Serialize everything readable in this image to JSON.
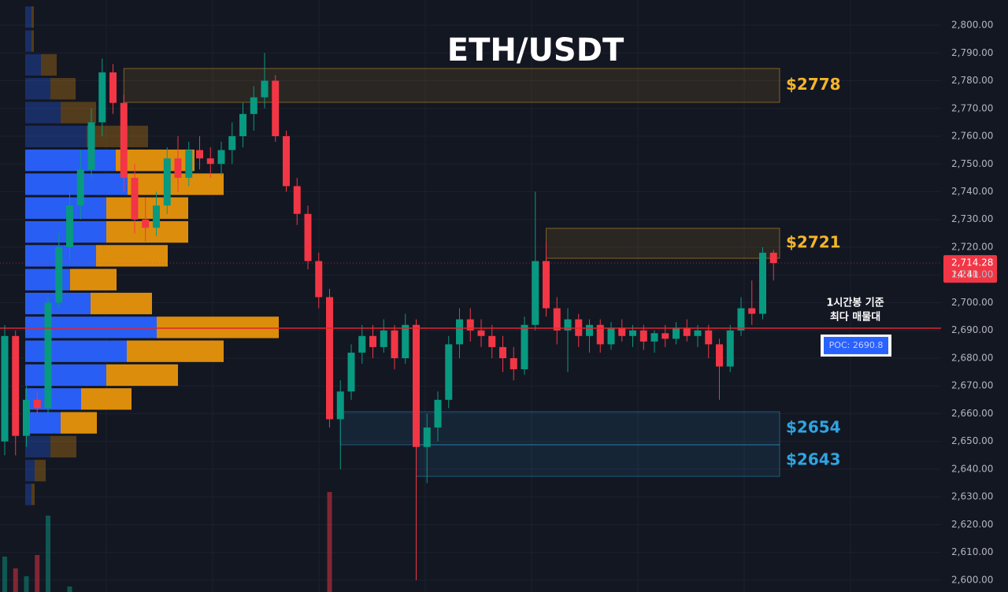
{
  "chart_data": {
    "type": "candlestick",
    "title": "ETH/USDT",
    "up_color": "#089981",
    "down_color": "#f23645",
    "open": [
      2650,
      2688,
      2652,
      2665,
      2662,
      2700,
      2720,
      2735,
      2748,
      2765,
      2783,
      2772,
      2745,
      2730,
      2727,
      2735,
      2752,
      2745,
      2755,
      2752,
      2750,
      2755,
      2760,
      2768,
      2774,
      2780,
      2760,
      2742,
      2732,
      2715,
      2702,
      2658,
      2668,
      2682,
      2688,
      2684,
      2690,
      2680,
      2692,
      2648,
      2655,
      2665,
      2685,
      2694,
      2690,
      2688,
      2684,
      2680,
      2676,
      2692,
      2715,
      2698,
      2690,
      2694,
      2688,
      2692,
      2685,
      2691,
      2688,
      2690,
      2686,
      2689,
      2687,
      2691,
      2688,
      2690,
      2685,
      2677,
      2690,
      2698,
      2696,
      2718
    ],
    "high": [
      2692,
      2690,
      2670,
      2668,
      2702,
      2725,
      2740,
      2755,
      2770,
      2788,
      2786,
      2775,
      2750,
      2738,
      2740,
      2756,
      2760,
      2758,
      2760,
      2756,
      2758,
      2765,
      2772,
      2778,
      2790,
      2782,
      2762,
      2745,
      2735,
      2718,
      2705,
      2672,
      2685,
      2692,
      2692,
      2694,
      2692,
      2696,
      2694,
      2660,
      2668,
      2688,
      2698,
      2698,
      2694,
      2692,
      2688,
      2684,
      2695,
      2740,
      2722,
      2702,
      2698,
      2696,
      2694,
      2694,
      2693,
      2694,
      2692,
      2692,
      2690,
      2692,
      2693,
      2694,
      2692,
      2692,
      2687,
      2692,
      2702,
      2708,
      2720,
      2719
    ],
    "low": [
      2645,
      2645,
      2648,
      2660,
      2660,
      2698,
      2715,
      2730,
      2745,
      2760,
      2768,
      2740,
      2725,
      2722,
      2724,
      2732,
      2740,
      2742,
      2748,
      2745,
      2746,
      2750,
      2756,
      2762,
      2770,
      2758,
      2740,
      2728,
      2712,
      2698,
      2655,
      2640,
      2665,
      2678,
      2680,
      2682,
      2676,
      2678,
      2600,
      2635,
      2650,
      2662,
      2680,
      2686,
      2684,
      2680,
      2675,
      2672,
      2674,
      2690,
      2695,
      2685,
      2675,
      2684,
      2682,
      2682,
      2683,
      2686,
      2684,
      2683,
      2682,
      2684,
      2685,
      2686,
      2684,
      2680,
      2665,
      2675,
      2688,
      2692,
      2694,
      2708
    ],
    "close": [
      2688,
      2652,
      2665,
      2662,
      2700,
      2720,
      2735,
      2748,
      2765,
      2783,
      2772,
      2745,
      2730,
      2727,
      2735,
      2752,
      2745,
      2755,
      2752,
      2750,
      2755,
      2760,
      2768,
      2774,
      2780,
      2760,
      2742,
      2732,
      2715,
      2702,
      2658,
      2668,
      2682,
      2688,
      2684,
      2690,
      2680,
      2692,
      2648,
      2655,
      2665,
      2685,
      2694,
      2690,
      2688,
      2684,
      2680,
      2676,
      2692,
      2715,
      2698,
      2690,
      2694,
      2688,
      2692,
      2685,
      2691,
      2688,
      2690,
      2686,
      2689,
      2687,
      2691,
      2688,
      2690,
      2685,
      2677,
      2690,
      2698,
      2696,
      2718,
      2714.28
    ],
    "volume": [
      45,
      30,
      20,
      47,
      97,
      null,
      7,
      null,
      null,
      null,
      null,
      null,
      null,
      null,
      null,
      null,
      null,
      null,
      null,
      null,
      null,
      null,
      null,
      null,
      null,
      null,
      null,
      null,
      null,
      null,
      127,
      null,
      null,
      null,
      null,
      null,
      null,
      null,
      null,
      null,
      null,
      null,
      null,
      null,
      null,
      null,
      null,
      null,
      null,
      null,
      null,
      null,
      null,
      null,
      null,
      null,
      null,
      null,
      null,
      null,
      null,
      null,
      null,
      null,
      null,
      null,
      null,
      null,
      null,
      null,
      null,
      null
    ],
    "ylim": [
      2595.74,
      2809.08
    ],
    "yticks": [
      {
        "value": 2600,
        "label": "2,600.00"
      },
      {
        "value": 2610,
        "label": "2,610.00"
      },
      {
        "value": 2620,
        "label": "2,620.00"
      },
      {
        "value": 2630,
        "label": "2,630.00"
      },
      {
        "value": 2640,
        "label": "2,640.00"
      },
      {
        "value": 2650,
        "label": "2,650.00"
      },
      {
        "value": 2660,
        "label": "2,660.00"
      },
      {
        "value": 2670,
        "label": "2,670.00"
      },
      {
        "value": 2680,
        "label": "2,680.00"
      },
      {
        "value": 2690,
        "label": "2,690.00"
      },
      {
        "value": 2700,
        "label": "2,700.00"
      },
      {
        "value": 2710,
        "label": "2,710.00"
      },
      {
        "value": 2720,
        "label": "2,720.00"
      },
      {
        "value": 2730,
        "label": "2,730.00"
      },
      {
        "value": 2740,
        "label": "2,740.00"
      },
      {
        "value": 2750,
        "label": "2,750.00"
      },
      {
        "value": 2760,
        "label": "2,760.00"
      },
      {
        "value": 2770,
        "label": "2,770.00"
      },
      {
        "value": 2780,
        "label": "2,780.00"
      },
      {
        "value": 2790,
        "label": "2,790.00"
      },
      {
        "value": 2800,
        "label": "2,800.00"
      }
    ],
    "grid": true,
    "volume_profile": {
      "bins": [
        2807.2,
        2798.6,
        2790.0,
        2781.4,
        2772.8,
        2764.2,
        2755.6,
        2747.0,
        2738.4,
        2729.8,
        2721.2,
        2712.6,
        2704.0,
        2695.4,
        2686.8,
        2678.2,
        2669.6,
        2661.0,
        2652.4,
        2643.8,
        2635.2,
        2626.6
      ],
      "up": [
        8,
        8,
        20,
        32,
        45,
        78,
        115,
        130,
        103,
        103,
        90,
        57,
        83,
        167,
        129,
        103,
        71,
        45,
        32,
        12,
        8
      ],
      "down": [
        3,
        3,
        20,
        32,
        45,
        78,
        100,
        122,
        104,
        104,
        91,
        59,
        78,
        155,
        123,
        91,
        64,
        46,
        33,
        14,
        4
      ],
      "up_color": "#2962ff",
      "down_color": "#e8930c",
      "value_area": [
        2652.4,
        2755.6
      ]
    },
    "zones": [
      {
        "label": "$2778",
        "low": 2772.2,
        "high": 2784.4,
        "start": 11,
        "color": "#f5b52a"
      },
      {
        "label": "$2721",
        "low": 2716.0,
        "high": 2726.8,
        "start": 50,
        "color": "#f5b52a"
      },
      {
        "label": "$2654",
        "low": 2648.8,
        "high": 2660.7,
        "start": 31,
        "color": "#2fa4e0"
      },
      {
        "label": "$2643",
        "low": 2637.4,
        "high": 2648.8,
        "start": 38,
        "color": "#2fa4e0"
      }
    ],
    "poc": {
      "value": 2690.8,
      "label": "POC: 2690.8",
      "color": "#e0262f"
    },
    "annotation": [
      "1시간봉 기준",
      "최다 매물대"
    ],
    "last_price": {
      "value": 2714.28,
      "label": "2,714.28",
      "time": "14:41"
    }
  }
}
